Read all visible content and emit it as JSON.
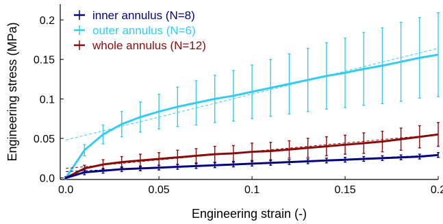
{
  "chart_data": {
    "type": "line",
    "xlabel": "Engineering strain (-)",
    "ylabel": "Engineering stress (MPa)",
    "xlim": [
      -0.003,
      0.2
    ],
    "ylim": [
      -0.002,
      0.22
    ],
    "xticks": [
      0.0,
      0.05,
      0.1,
      0.15,
      0.2
    ],
    "xtick_labels": [
      "0.0",
      "0.05",
      "0.1",
      "0.15",
      "0.2"
    ],
    "yticks": [
      0.0,
      0.05,
      0.1,
      0.15,
      0.2
    ],
    "ytick_labels": [
      "0.0",
      "0.05",
      "0.1",
      "0.15",
      "0.2"
    ],
    "grid": false,
    "legend_position": "top-left",
    "series": [
      {
        "name": "inner annulus (N=8)",
        "color": "#000080",
        "x": [
          0.0,
          0.01,
          0.02,
          0.03,
          0.04,
          0.05,
          0.06,
          0.07,
          0.08,
          0.09,
          0.1,
          0.11,
          0.12,
          0.13,
          0.14,
          0.15,
          0.16,
          0.17,
          0.18,
          0.19,
          0.2
        ],
        "y": [
          0.0,
          0.007,
          0.009,
          0.011,
          0.012,
          0.013,
          0.014,
          0.015,
          0.016,
          0.017,
          0.018,
          0.019,
          0.02,
          0.021,
          0.022,
          0.023,
          0.024,
          0.025,
          0.026,
          0.027,
          0.029
        ],
        "error": [
          0.001,
          0.003,
          0.003,
          0.003,
          0.003,
          0.003,
          0.003,
          0.003,
          0.003,
          0.003,
          0.003,
          0.003,
          0.003,
          0.003,
          0.003,
          0.003,
          0.003,
          0.003,
          0.003,
          0.003,
          0.003
        ],
        "fit_line": [
          [
            0.0,
            0.008
          ],
          [
            0.2,
            0.029
          ]
        ]
      },
      {
        "name": "outer annulus (N=6)",
        "color": "#33ccf0",
        "x": [
          0.0,
          0.01,
          0.02,
          0.03,
          0.04,
          0.05,
          0.06,
          0.07,
          0.08,
          0.09,
          0.1,
          0.11,
          0.12,
          0.13,
          0.14,
          0.15,
          0.16,
          0.17,
          0.18,
          0.19,
          0.2
        ],
        "y": [
          0.0,
          0.035,
          0.055,
          0.068,
          0.077,
          0.084,
          0.09,
          0.095,
          0.1,
          0.104,
          0.109,
          0.114,
          0.119,
          0.124,
          0.129,
          0.133,
          0.138,
          0.142,
          0.147,
          0.152,
          0.156
        ],
        "error": [
          0.002,
          0.007,
          0.012,
          0.016,
          0.019,
          0.022,
          0.025,
          0.028,
          0.03,
          0.032,
          0.034,
          0.036,
          0.038,
          0.04,
          0.042,
          0.044,
          0.046,
          0.048,
          0.05,
          0.051,
          0.053
        ],
        "fit_line": [
          [
            0.0,
            0.048
          ],
          [
            0.2,
            0.164
          ]
        ]
      },
      {
        "name": "whole annulus (N=12)",
        "color": "#8b0a0a",
        "x": [
          0.0,
          0.01,
          0.02,
          0.03,
          0.04,
          0.05,
          0.06,
          0.07,
          0.08,
          0.09,
          0.1,
          0.11,
          0.12,
          0.13,
          0.14,
          0.15,
          0.16,
          0.17,
          0.18,
          0.19,
          0.2
        ],
        "y": [
          0.0,
          0.012,
          0.017,
          0.02,
          0.022,
          0.024,
          0.026,
          0.028,
          0.03,
          0.031,
          0.033,
          0.034,
          0.036,
          0.038,
          0.04,
          0.042,
          0.044,
          0.046,
          0.049,
          0.052,
          0.055
        ],
        "error": [
          0.001,
          0.004,
          0.006,
          0.007,
          0.008,
          0.008,
          0.009,
          0.009,
          0.01,
          0.01,
          0.011,
          0.011,
          0.011,
          0.012,
          0.012,
          0.012,
          0.013,
          0.013,
          0.014,
          0.014,
          0.015
        ],
        "fit_line": [
          [
            0.0,
            0.012
          ],
          [
            0.2,
            0.055
          ]
        ]
      }
    ]
  }
}
